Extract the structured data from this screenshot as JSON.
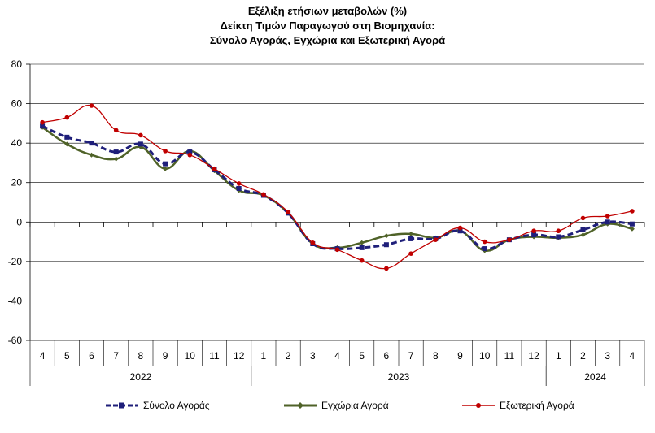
{
  "chart_data": {
    "type": "line",
    "title": [
      "Εξέλιξη ετήσιων μεταβολών (%)",
      "Δείκτη Τιμών Παραγωγού στη Βιομηχανία:",
      "Σύνολο Αγοράς, Εγχώρια και Εξωτερική Αγορά"
    ],
    "x": [
      "4",
      "5",
      "6",
      "7",
      "8",
      "9",
      "10",
      "11",
      "12",
      "1",
      "2",
      "3",
      "4",
      "5",
      "6",
      "7",
      "8",
      "9",
      "10",
      "11",
      "12",
      "1",
      "2",
      "3",
      "4"
    ],
    "years": [
      {
        "label": "2022",
        "from": 0,
        "to": 8
      },
      {
        "label": "2023",
        "from": 9,
        "to": 20
      },
      {
        "label": "2024",
        "from": 21,
        "to": 24
      }
    ],
    "yticks": [
      80,
      60,
      40,
      20,
      0,
      -20,
      -40,
      -60
    ],
    "ylim": [
      -60,
      80
    ],
    "series": [
      {
        "name": "Σύνολο Αγοράς",
        "color": "#1f1f7a",
        "values": [
          48.6,
          43.0,
          40.0,
          35.5,
          39.5,
          29.5,
          35.5,
          26.5,
          17.0,
          13.5,
          4.5,
          -11.0,
          -13.5,
          -13.0,
          -11.5,
          -8.5,
          -8.5,
          -4.5,
          -13.5,
          -9.0,
          -6.5,
          -7.5,
          -4.0,
          0.0,
          -1.0
        ]
      },
      {
        "name": "Εγχώρια Αγορά",
        "color": "#4f6228",
        "values": [
          48.0,
          39.5,
          34.0,
          32.0,
          38.0,
          27.0,
          36.0,
          26.0,
          16.0,
          13.5,
          4.5,
          -11.0,
          -13.0,
          -10.5,
          -7.0,
          -6.0,
          -8.0,
          -4.5,
          -14.5,
          -9.0,
          -7.5,
          -8.0,
          -6.5,
          -1.0,
          -3.5
        ]
      },
      {
        "name": "Εξωτερική Αγορά",
        "color": "#c00000",
        "values": [
          50.5,
          53.0,
          59.0,
          46.5,
          44.0,
          36.0,
          34.0,
          27.0,
          19.5,
          14.0,
          5.0,
          -10.5,
          -14.0,
          -19.5,
          -23.5,
          -16.0,
          -9.0,
          -3.0,
          -10.0,
          -9.0,
          -4.5,
          -4.5,
          2.0,
          3.0,
          5.5
        ]
      }
    ],
    "legend": "bottom",
    "grid": true
  }
}
